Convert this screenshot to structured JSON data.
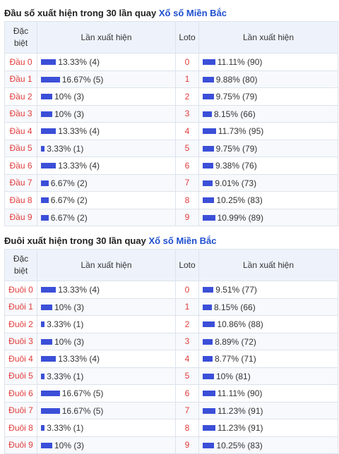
{
  "sections": [
    {
      "title_prefix": "Đầu số xuất hiện trong 30 lần quay",
      "title_brand": "Xổ số Miền Bắc",
      "headers": {
        "special_line1": "Đặc",
        "special_line2": "biệt",
        "count": "Lần xuất hiện",
        "loto": "Loto",
        "loto_count": "Lần xuất hiện"
      },
      "rows": [
        {
          "label": "Đầu 0",
          "pct": 13.33,
          "text": "13.33% (4)",
          "loto": "0",
          "loto_pct": 11.11,
          "loto_text": "11.11% (90)"
        },
        {
          "label": "Đầu 1",
          "pct": 16.67,
          "text": "16.67% (5)",
          "loto": "1",
          "loto_pct": 9.88,
          "loto_text": "9.88% (80)"
        },
        {
          "label": "Đầu 2",
          "pct": 10,
          "text": "10% (3)",
          "loto": "2",
          "loto_pct": 9.75,
          "loto_text": "9.75% (79)"
        },
        {
          "label": "Đầu 3",
          "pct": 10,
          "text": "10% (3)",
          "loto": "3",
          "loto_pct": 8.15,
          "loto_text": "8.15% (66)"
        },
        {
          "label": "Đầu 4",
          "pct": 13.33,
          "text": "13.33% (4)",
          "loto": "4",
          "loto_pct": 11.73,
          "loto_text": "11.73% (95)"
        },
        {
          "label": "Đầu 5",
          "pct": 3.33,
          "text": "3.33% (1)",
          "loto": "5",
          "loto_pct": 9.75,
          "loto_text": "9.75% (79)"
        },
        {
          "label": "Đầu 6",
          "pct": 13.33,
          "text": "13.33% (4)",
          "loto": "6",
          "loto_pct": 9.38,
          "loto_text": "9.38% (76)"
        },
        {
          "label": "Đầu 7",
          "pct": 6.67,
          "text": "6.67% (2)",
          "loto": "7",
          "loto_pct": 9.01,
          "loto_text": "9.01% (73)"
        },
        {
          "label": "Đầu 8",
          "pct": 6.67,
          "text": "6.67% (2)",
          "loto": "8",
          "loto_pct": 10.25,
          "loto_text": "10.25% (83)"
        },
        {
          "label": "Đầu 9",
          "pct": 6.67,
          "text": "6.67% (2)",
          "loto": "9",
          "loto_pct": 10.99,
          "loto_text": "10.99% (89)"
        }
      ]
    },
    {
      "title_prefix": "Đuôi xuất hiện trong 30 lần quay",
      "title_brand": "Xổ số Miền Bắc",
      "headers": {
        "special_line1": "Đặc",
        "special_line2": "biệt",
        "count": "Lần xuất hiện",
        "loto": "Loto",
        "loto_count": "Lần xuất hiện"
      },
      "rows": [
        {
          "label": "Đuôi 0",
          "pct": 13.33,
          "text": "13.33% (4)",
          "loto": "0",
          "loto_pct": 9.51,
          "loto_text": "9.51% (77)"
        },
        {
          "label": "Đuôi 1",
          "pct": 10,
          "text": "10% (3)",
          "loto": "1",
          "loto_pct": 8.15,
          "loto_text": "8.15% (66)"
        },
        {
          "label": "Đuôi 2",
          "pct": 3.33,
          "text": "3.33% (1)",
          "loto": "2",
          "loto_pct": 10.86,
          "loto_text": "10.86% (88)"
        },
        {
          "label": "Đuôi 3",
          "pct": 10,
          "text": "10% (3)",
          "loto": "3",
          "loto_pct": 8.89,
          "loto_text": "8.89% (72)"
        },
        {
          "label": "Đuôi 4",
          "pct": 13.33,
          "text": "13.33% (4)",
          "loto": "4",
          "loto_pct": 8.77,
          "loto_text": "8.77% (71)"
        },
        {
          "label": "Đuôi 5",
          "pct": 3.33,
          "text": "3.33% (1)",
          "loto": "5",
          "loto_pct": 10,
          "loto_text": "10% (81)"
        },
        {
          "label": "Đuôi 6",
          "pct": 16.67,
          "text": "16.67% (5)",
          "loto": "6",
          "loto_pct": 11.11,
          "loto_text": "11.11% (90)"
        },
        {
          "label": "Đuôi 7",
          "pct": 16.67,
          "text": "16.67% (5)",
          "loto": "7",
          "loto_pct": 11.23,
          "loto_text": "11.23% (91)"
        },
        {
          "label": "Đuôi 8",
          "pct": 3.33,
          "text": "3.33% (1)",
          "loto": "8",
          "loto_pct": 11.23,
          "loto_text": "11.23% (91)"
        },
        {
          "label": "Đuôi 9",
          "pct": 10,
          "text": "10% (3)",
          "loto": "9",
          "loto_pct": 10.25,
          "loto_text": "10.25% (83)"
        }
      ]
    }
  ],
  "colors": {
    "bar": "#3b4fd8",
    "label": "#e23b3b",
    "brand": "#1e4fcf",
    "header_bg": "#eef3fb"
  }
}
